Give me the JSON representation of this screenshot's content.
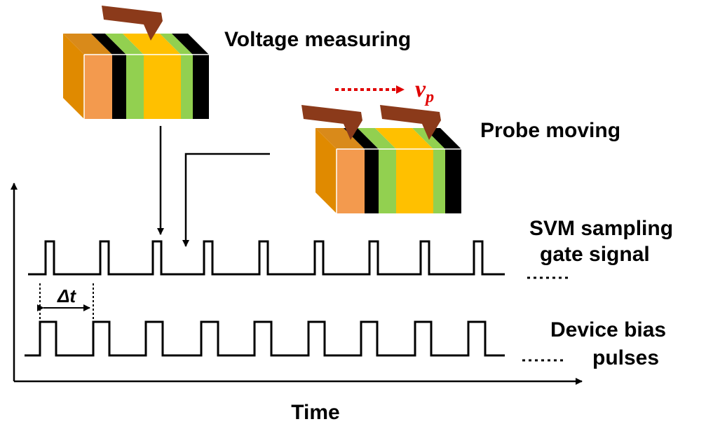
{
  "labels": {
    "voltage_measuring": "Voltage measuring",
    "probe_moving": "Probe moving",
    "velocity": {
      "symbol": "v",
      "subscript": "p"
    },
    "svm_signal": [
      "SVM sampling",
      "gate signal"
    ],
    "bias_pulses": [
      "Device bias",
      "pulses"
    ],
    "delta_t": "Δt",
    "time_axis": "Time"
  }
}
